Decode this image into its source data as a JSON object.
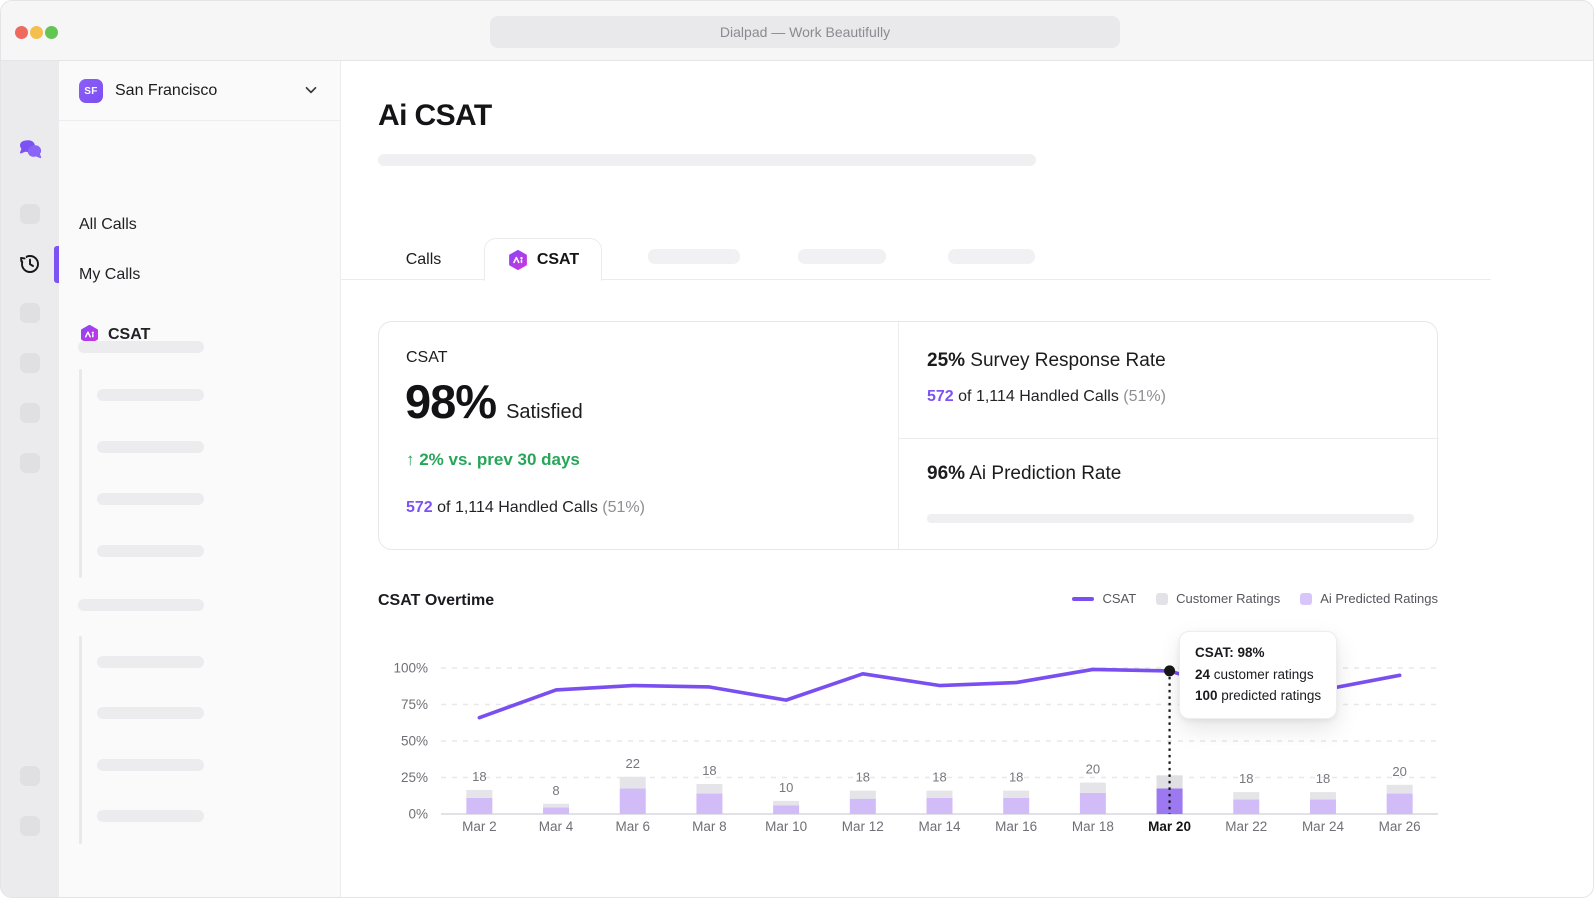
{
  "window": {
    "app_title": "Dialpad — Work Beautifully"
  },
  "colors": {
    "brand_purple": "#7C52F5",
    "green_positive": "#27A65A",
    "value_purple": "#7C52F5"
  },
  "sidebar": {
    "workspace": {
      "badge": "SF",
      "name": "San Francisco"
    },
    "items": [
      {
        "label": "All Calls"
      },
      {
        "label": "My Calls"
      },
      {
        "label": "CSAT"
      }
    ]
  },
  "main": {
    "page_title": "Ai CSAT",
    "tabs": [
      {
        "label": "Calls",
        "active": false
      },
      {
        "label": "CSAT",
        "active": true
      }
    ],
    "stats": {
      "csat": {
        "label": "CSAT",
        "value": "98%",
        "suffix": "Satisfied",
        "delta": "↑ 2% vs. prev 30 days",
        "detail": {
          "value": "572",
          "text": " of 1,114 Handled Calls ",
          "paren": "(51%)"
        }
      },
      "survey": {
        "value": "25%",
        "label": " Survey Response Rate",
        "detail": {
          "value": "572",
          "text": " of 1,114 Handled Calls ",
          "paren": "(51%)"
        }
      },
      "prediction": {
        "value": "96%",
        "label": " Ai Prediction Rate"
      }
    },
    "chart_header": {
      "title": "CSAT Overtime",
      "legend": [
        {
          "label": "CSAT",
          "swatch": "line",
          "color": "#7a4ff0"
        },
        {
          "label": "Customer Ratings",
          "swatch": "square",
          "color": "#e3e3e7"
        },
        {
          "label": "Ai Predicted Ratings",
          "swatch": "square",
          "color": "#d8c5fa"
        }
      ]
    }
  },
  "chart_data": {
    "type": "line+stacked-bar",
    "title": "CSAT Overtime",
    "categories": [
      "Mar 2",
      "Mar 4",
      "Mar 6",
      "Mar 8",
      "Mar 10",
      "Mar 12",
      "Mar 14",
      "Mar 16",
      "Mar 18",
      "Mar 20",
      "Mar 22",
      "Mar 24",
      "Mar 26"
    ],
    "series": [
      {
        "name": "CSAT",
        "type": "line",
        "unit": "%",
        "values": [
          66,
          85,
          88,
          87,
          78,
          96,
          88,
          90,
          99,
          98,
          82,
          85,
          95
        ]
      },
      {
        "name": "Customer Ratings",
        "type": "bar",
        "unit": "% of axis",
        "values": [
          5.5,
          2.5,
          8,
          6.5,
          3,
          5.5,
          5,
          5,
          7,
          9,
          5,
          5,
          6
        ]
      },
      {
        "name": "Ai Predicted Ratings",
        "type": "bar",
        "unit": "% of axis",
        "values": [
          11,
          4.5,
          17.5,
          14,
          6,
          10.5,
          11,
          11,
          14.5,
          17.5,
          10,
          10,
          14
        ]
      }
    ],
    "bar_total_labels": [
      "18",
      "8",
      "22",
      "18",
      "10",
      "18",
      "18",
      "18",
      "20",
      "",
      "18",
      "18",
      "20"
    ],
    "ylabels": [
      "100%",
      "75%",
      "50%",
      "25%",
      "0%"
    ],
    "ylim": [
      0,
      100
    ],
    "grid": "dashed horizontal, solid baseline",
    "legend_position": "top-right",
    "highlight": {
      "index": 9,
      "category": "Mar 20",
      "tooltip": {
        "title": "CSAT: 98%",
        "lines": [
          {
            "value": "24",
            "label": " customer ratings"
          },
          {
            "value": "100",
            "label": " predicted ratings"
          }
        ]
      }
    },
    "colors": {
      "line": "#7a4ff0",
      "bar_customer": "#e5e5e9",
      "bar_predicted": "#d2bcf8",
      "bar_predicted_highlight": "#9d79f1",
      "bar_customer_highlight": "#e0e0e4",
      "grid": "#e8e8ec",
      "baseline": "#d8d8dd",
      "axis_text": "#6f6f76",
      "highlight_marker": "#17171a"
    }
  }
}
